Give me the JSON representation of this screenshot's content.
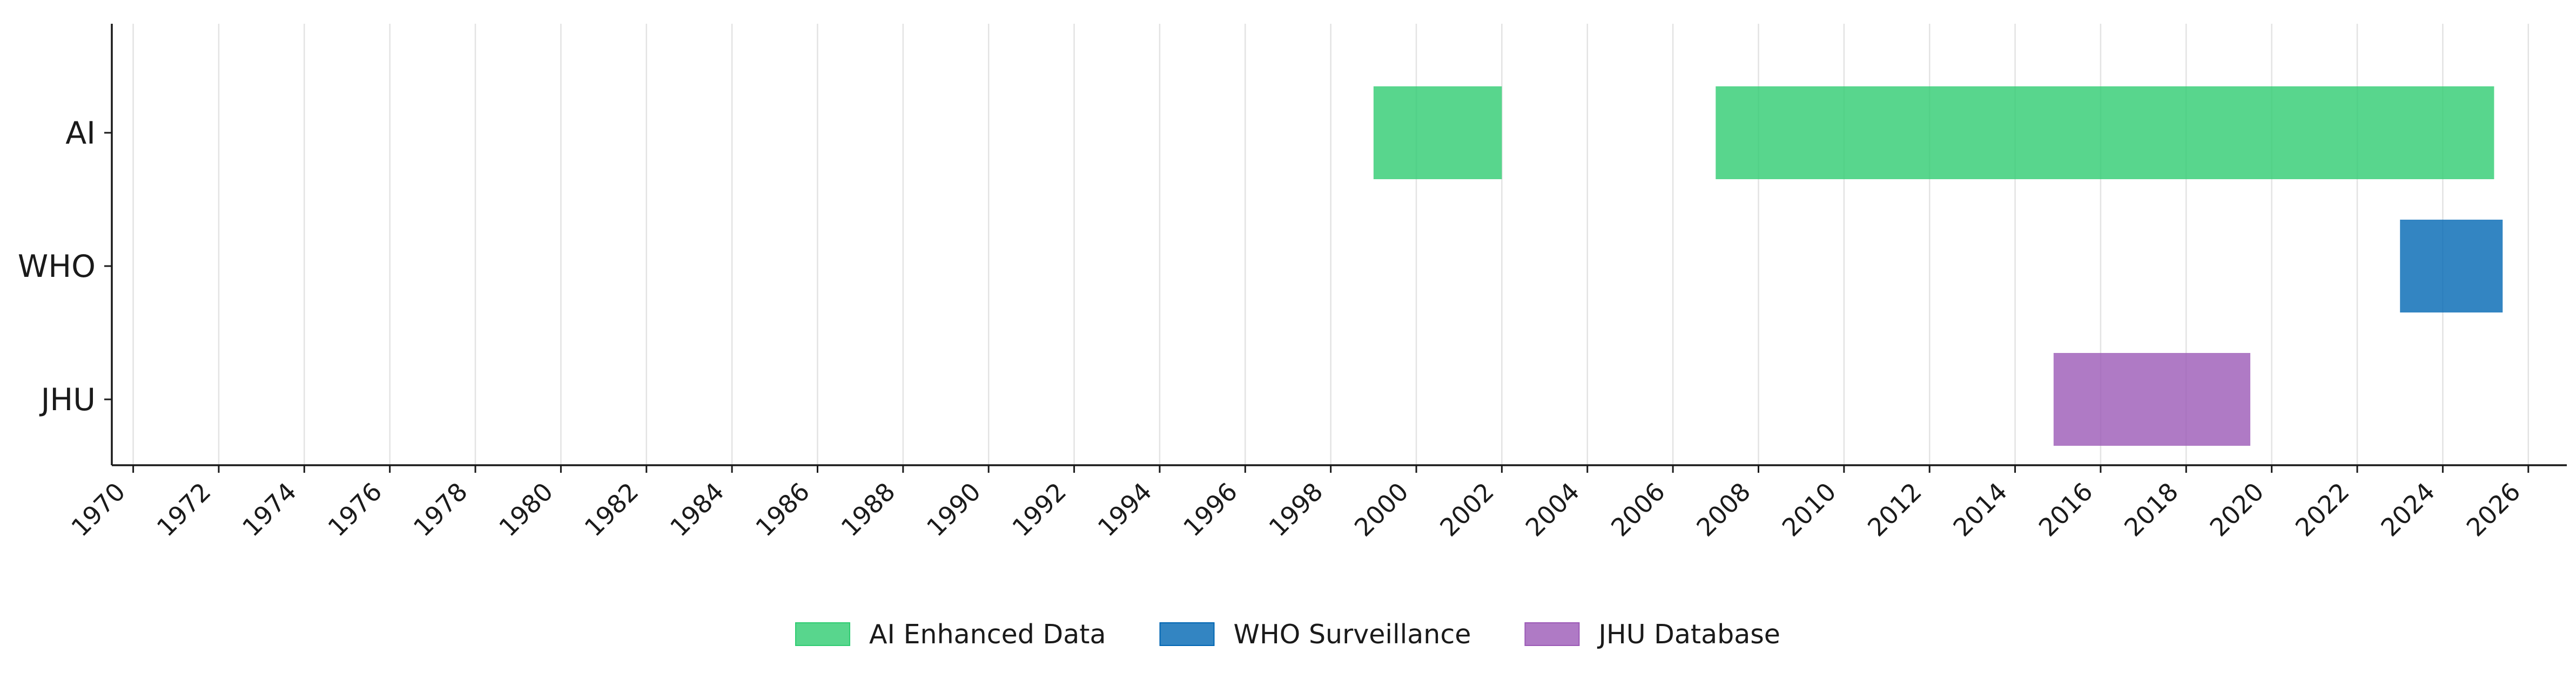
{
  "chart_data": {
    "type": "bar",
    "orientation": "horizontal",
    "title": "",
    "xlabel": "",
    "ylabel": "",
    "categories": [
      "AI",
      "WHO",
      "JHU"
    ],
    "xlim": [
      1969.5,
      2026.9
    ],
    "x_ticks": [
      "1970",
      "1972",
      "1974",
      "1976",
      "1978",
      "1980",
      "1982",
      "1984",
      "1986",
      "1988",
      "1990",
      "1992",
      "1994",
      "1996",
      "1998",
      "2000",
      "2002",
      "2004",
      "2006",
      "2008",
      "2010",
      "2012",
      "2014",
      "2016",
      "2018",
      "2020",
      "2022",
      "2024",
      "2026"
    ],
    "grid": "vertical",
    "legend_position": "bottom-center",
    "series": [
      {
        "name": "AI Enhanced Data",
        "color": "#2ecc71",
        "category": "AI",
        "intervals": [
          [
            1999.0,
            2002.0
          ],
          [
            2007.0,
            2025.2
          ]
        ]
      },
      {
        "name": "WHO Surveillance",
        "color": "#0066b3",
        "category": "WHO",
        "intervals": [
          [
            2023.0,
            2025.4
          ]
        ]
      },
      {
        "name": "JHU Database",
        "color": "#9b59b6",
        "category": "JHU",
        "intervals": [
          [
            2014.9,
            2019.5
          ]
        ]
      }
    ]
  }
}
